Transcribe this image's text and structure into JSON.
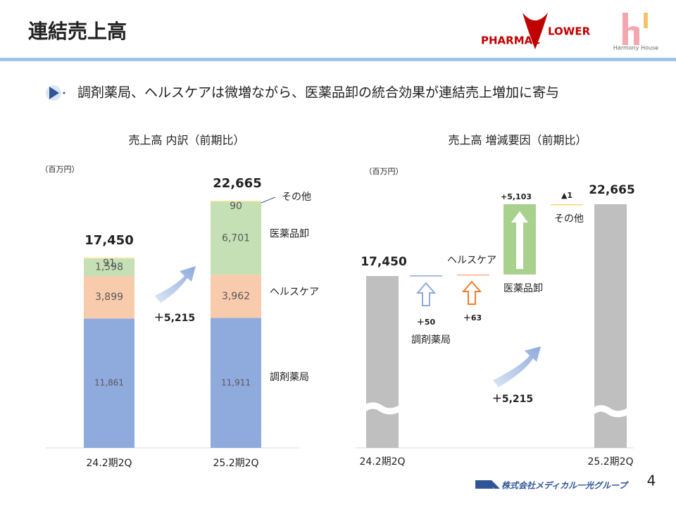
{
  "header": {
    "title": "連結売上高",
    "logo_left_a": "PHARMAC",
    "logo_left_b": "LOWER",
    "logo_right": "Harmony House"
  },
  "bullet": "調剤薬局、ヘルスケアは微増ながら、医薬品卸の統合効果が連結売上増加に寄与",
  "chart_data": [
    {
      "type": "stacked-bar",
      "title": "売上高 内訳（前期比）",
      "unit": "（百万円）",
      "categories": [
        "24.2期2Q",
        "25.2期2Q"
      ],
      "series": [
        {
          "name": "調剤薬局",
          "color": "#8faadc",
          "values": [
            11861,
            11911
          ],
          "value_labels": [
            "11,861",
            "11,911"
          ]
        },
        {
          "name": "ヘルスケア",
          "color": "#f8cbad",
          "values": [
            3899,
            3962
          ],
          "value_labels": [
            "3,899",
            "3,962"
          ]
        },
        {
          "name": "医薬品卸",
          "color": "#c5e0b4",
          "values": [
            1598,
            6701
          ],
          "value_labels": [
            "1,598",
            "6,701"
          ]
        },
        {
          "name": "その他",
          "color": "#ffe699",
          "values": [
            91,
            90
          ]
        }
      ],
      "totals": [
        17450,
        22665
      ],
      "total_labels": [
        "17,450",
        "22,665"
      ],
      "annotation": "＋5,215"
    },
    {
      "type": "waterfall",
      "title": "売上高 増減要因（前期比）",
      "unit": "（百万円）",
      "total_color": "#bfbfbf",
      "start": {
        "category": "24.2期2Q",
        "value": 17450,
        "value_label": "17,450"
      },
      "steps": [
        {
          "name": "調剤薬局",
          "value": 50,
          "value_label": "＋50",
          "color": "#8faadc"
        },
        {
          "name": "ヘルスケア",
          "value": 63,
          "value_label": "＋63",
          "color": "#f4b183"
        },
        {
          "name": "医薬品卸",
          "value": 5103,
          "value_label": "+5,103",
          "color": "#a9d18e"
        },
        {
          "name": "その他",
          "value": -1,
          "value_label": "▲1",
          "color": "#ffd966"
        }
      ],
      "end": {
        "category": "25.2期2Q",
        "value": 22665,
        "value_label": "22,665"
      },
      "annotation": "＋5,215"
    }
  ],
  "footer": {
    "company": "株式会社メディカル一光グループ",
    "page": "4"
  }
}
